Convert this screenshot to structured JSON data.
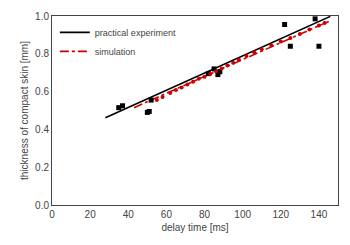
{
  "chart_data": {
    "type": "line",
    "xlabel": "delay time [ms]",
    "ylabel": "thickness of compact skin [mm]",
    "xlim": [
      0,
      150
    ],
    "ylim": [
      0.0,
      1.0
    ],
    "xticks": [
      0,
      20,
      40,
      60,
      80,
      100,
      120,
      140
    ],
    "yticks": [
      {
        "value": 0.0,
        "label": "0.0"
      },
      0.2,
      0.4,
      0.6,
      0.8,
      {
        "value": 1.0,
        "label": "1.0"
      }
    ],
    "grid": false,
    "legend": "upper left",
    "series": [
      {
        "name": "practical experiment",
        "type": "line",
        "color": "#000000",
        "line_style": "solid",
        "x": [
          28,
          146
        ],
        "values": [
          0.462,
          0.998
        ]
      },
      {
        "name": "simulation",
        "type": "line",
        "color": "#cc0000",
        "line_style": "dashdot",
        "x": [
          43,
          146
        ],
        "values": [
          0.515,
          0.975
        ]
      },
      {
        "type": "scatter",
        "color": "#000000",
        "marker": "square",
        "x": [
          35,
          37,
          50,
          51,
          52,
          82,
          85,
          87,
          88,
          122,
          125,
          138,
          140
        ],
        "values": [
          0.515,
          0.525,
          0.49,
          0.495,
          0.555,
          0.695,
          0.72,
          0.69,
          0.705,
          0.955,
          0.84,
          0.985,
          0.84
        ]
      },
      {
        "type": "scatter",
        "color": "#cc0000",
        "marker": "circle",
        "x": [
          55,
          58,
          62,
          65,
          68,
          71,
          74,
          77,
          80,
          83,
          86,
          89,
          92,
          95,
          98,
          102,
          106,
          110,
          115,
          120,
          125,
          130,
          135,
          140,
          143
        ],
        "values": [
          0.555,
          0.572,
          0.592,
          0.608,
          0.622,
          0.638,
          0.652,
          0.668,
          0.678,
          0.693,
          0.708,
          0.722,
          0.738,
          0.752,
          0.768,
          0.788,
          0.808,
          0.824,
          0.845,
          0.865,
          0.884,
          0.905,
          0.928,
          0.95,
          0.963
        ]
      }
    ]
  }
}
